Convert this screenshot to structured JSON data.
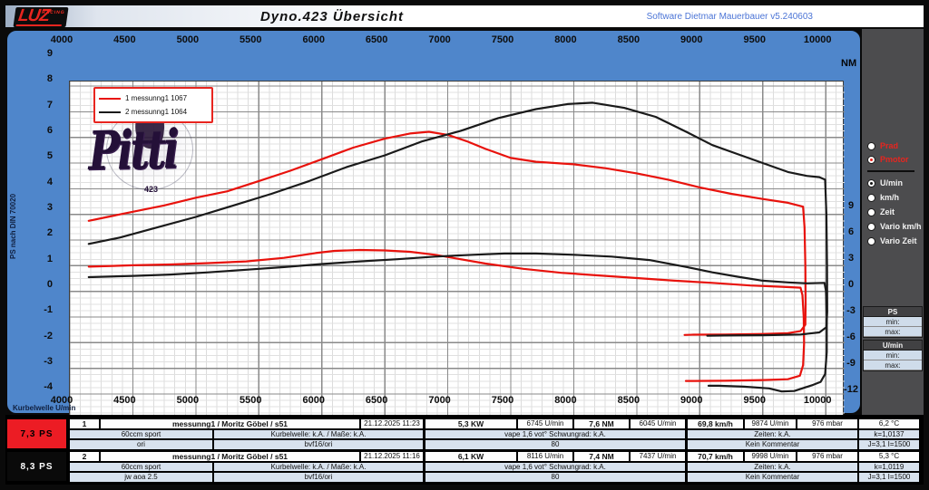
{
  "window": {
    "title": "Dyno.423  Übersicht",
    "software_version": "Software Dietmar Mauerbauer v5.240603",
    "logo_main": "LUZ",
    "logo_sub": "RACING"
  },
  "colors": {
    "curve_red": "#e8120c",
    "curve_black": "#1a1a1a",
    "panel_blue": "#4f86cb",
    "panel_gray": "#4c4c4e",
    "row_tint": "#d8e2ee",
    "ps_cell_red": "#ec1c24",
    "ps_cell_black": "#0a0a0a",
    "software_text": "#4b74d6"
  },
  "chart": {
    "left_axis_label": "PS nach DIN 70020",
    "bottom_axis_label": "Kurbelwelle U/min",
    "right_axis_label": "NM",
    "x_ticks": [
      4000,
      4500,
      5000,
      5500,
      6000,
      6500,
      7000,
      7500,
      8000,
      8500,
      9000,
      9500,
      10000
    ],
    "left_ticks": [
      9,
      8,
      7,
      6,
      5,
      4,
      3,
      2,
      1,
      0,
      -1,
      -2,
      -3,
      -4
    ],
    "right_ticks": [
      9,
      6,
      3,
      0,
      -3,
      -6,
      -9,
      -12
    ],
    "legend": [
      {
        "label": "1  messunng1 1067",
        "color": "#e8120c"
      },
      {
        "label": "2  messunng1 1064",
        "color": "#1a1a1a"
      }
    ],
    "watermark": {
      "text": "Pitti",
      "sub": "423"
    }
  },
  "chart_data": {
    "type": "line",
    "title": "Dyno.423 Übersicht",
    "xlabel": "Kurbelwelle U/min",
    "ylabel_left": "PS nach DIN 70020",
    "ylabel_right": "NM",
    "x_range": [
      4000,
      10150
    ],
    "y_left_range_ps": [
      -4,
      9.2
    ],
    "y_right_ticks_nm": [
      9,
      6,
      3,
      0,
      -3,
      -6,
      -9,
      -12
    ],
    "grid": true,
    "legend_position": "top-left",
    "series": [
      {
        "name": "1 messunng1 1067 (PS)",
        "axis": "PS",
        "color": "#e8120c",
        "points": [
          [
            4150,
            3.75
          ],
          [
            4300,
            3.9
          ],
          [
            4500,
            4.1
          ],
          [
            4750,
            4.35
          ],
          [
            5000,
            4.65
          ],
          [
            5250,
            4.9
          ],
          [
            5500,
            5.3
          ],
          [
            5750,
            5.7
          ],
          [
            6000,
            6.15
          ],
          [
            6250,
            6.6
          ],
          [
            6500,
            6.95
          ],
          [
            6700,
            7.15
          ],
          [
            6850,
            7.22
          ],
          [
            7000,
            7.1
          ],
          [
            7150,
            6.85
          ],
          [
            7300,
            6.55
          ],
          [
            7500,
            6.2
          ],
          [
            7700,
            6.05
          ],
          [
            8000,
            5.95
          ],
          [
            8250,
            5.8
          ],
          [
            8500,
            5.6
          ],
          [
            8750,
            5.35
          ],
          [
            9000,
            5.05
          ],
          [
            9250,
            4.8
          ],
          [
            9500,
            4.6
          ],
          [
            9700,
            4.45
          ],
          [
            9820,
            4.3
          ],
          [
            9832,
            3.5
          ],
          [
            9838,
            2.0
          ],
          [
            9840,
            0.5
          ],
          [
            9838,
            -0.3
          ],
          [
            9800,
            -0.55
          ],
          [
            9700,
            -0.63
          ],
          [
            9500,
            -0.66
          ],
          [
            9200,
            -0.68
          ],
          [
            8950,
            -0.69
          ],
          [
            8880,
            -0.7
          ]
        ]
      },
      {
        "name": "1 messunng1 1067 (NM)",
        "axis": "NM",
        "color": "#e8120c",
        "points": [
          [
            4150,
            5.75
          ],
          [
            4500,
            5.9
          ],
          [
            4800,
            6.0
          ],
          [
            5100,
            6.15
          ],
          [
            5400,
            6.35
          ],
          [
            5700,
            6.75
          ],
          [
            5950,
            7.3
          ],
          [
            6100,
            7.55
          ],
          [
            6300,
            7.65
          ],
          [
            6500,
            7.6
          ],
          [
            6700,
            7.45
          ],
          [
            6900,
            7.1
          ],
          [
            7100,
            6.6
          ],
          [
            7300,
            6.1
          ],
          [
            7600,
            5.5
          ],
          [
            7900,
            5.05
          ],
          [
            8200,
            4.75
          ],
          [
            8500,
            4.45
          ],
          [
            8800,
            4.15
          ],
          [
            9100,
            3.9
          ],
          [
            9400,
            3.6
          ],
          [
            9650,
            3.45
          ],
          [
            9800,
            3.35
          ],
          [
            9815,
            2.5
          ],
          [
            9825,
            0.0
          ],
          [
            9828,
            -3.0
          ],
          [
            9820,
            -5.5
          ],
          [
            9795,
            -6.7
          ],
          [
            9700,
            -7.1
          ],
          [
            9500,
            -7.2
          ],
          [
            9200,
            -7.28
          ],
          [
            8950,
            -7.3
          ],
          [
            8890,
            -7.3
          ]
        ]
      },
      {
        "name": "2 messunng1 1064 (PS)",
        "axis": "PS",
        "color": "#1a1a1a",
        "points": [
          [
            4150,
            2.85
          ],
          [
            4400,
            3.1
          ],
          [
            4700,
            3.5
          ],
          [
            5000,
            3.9
          ],
          [
            5300,
            4.35
          ],
          [
            5600,
            4.8
          ],
          [
            5900,
            5.3
          ],
          [
            6200,
            5.85
          ],
          [
            6500,
            6.3
          ],
          [
            6800,
            6.85
          ],
          [
            7100,
            7.25
          ],
          [
            7400,
            7.75
          ],
          [
            7700,
            8.1
          ],
          [
            7950,
            8.3
          ],
          [
            8150,
            8.35
          ],
          [
            8400,
            8.15
          ],
          [
            8650,
            7.8
          ],
          [
            8900,
            7.2
          ],
          [
            9100,
            6.7
          ],
          [
            9300,
            6.35
          ],
          [
            9500,
            6.0
          ],
          [
            9700,
            5.65
          ],
          [
            9850,
            5.5
          ],
          [
            9950,
            5.45
          ],
          [
            9995,
            5.35
          ],
          [
            10005,
            4.0
          ],
          [
            10010,
            2.0
          ],
          [
            10012,
            0.2
          ],
          [
            10005,
            -0.4
          ],
          [
            9950,
            -0.6
          ],
          [
            9800,
            -0.68
          ],
          [
            9500,
            -0.71
          ],
          [
            9200,
            -0.72
          ],
          [
            9060,
            -0.73
          ]
        ]
      },
      {
        "name": "2 messunng1 1064 (NM)",
        "axis": "NM",
        "color": "#1a1a1a",
        "points": [
          [
            4150,
            4.55
          ],
          [
            4500,
            4.7
          ],
          [
            4800,
            4.85
          ],
          [
            5100,
            5.1
          ],
          [
            5400,
            5.4
          ],
          [
            5700,
            5.7
          ],
          [
            6000,
            6.05
          ],
          [
            6300,
            6.35
          ],
          [
            6600,
            6.6
          ],
          [
            6900,
            6.9
          ],
          [
            7200,
            7.1
          ],
          [
            7450,
            7.25
          ],
          [
            7700,
            7.25
          ],
          [
            8000,
            7.1
          ],
          [
            8300,
            6.9
          ],
          [
            8600,
            6.5
          ],
          [
            8900,
            5.7
          ],
          [
            9100,
            5.1
          ],
          [
            9300,
            4.6
          ],
          [
            9500,
            4.15
          ],
          [
            9700,
            3.95
          ],
          [
            9850,
            3.85
          ],
          [
            9990,
            3.9
          ],
          [
            10002,
            3.0
          ],
          [
            10008,
            0.0
          ],
          [
            10008,
            -4.0
          ],
          [
            9995,
            -6.5
          ],
          [
            9960,
            -7.4
          ],
          [
            9900,
            -7.75
          ],
          [
            9750,
            -8.45
          ],
          [
            9650,
            -8.5
          ],
          [
            9550,
            -8.15
          ],
          [
            9350,
            -7.95
          ],
          [
            9150,
            -7.85
          ],
          [
            9070,
            -7.85
          ]
        ]
      }
    ]
  },
  "side_panel": {
    "power_radios": [
      {
        "label": "Prad",
        "selected": false
      },
      {
        "label": "Pmotor",
        "selected": true
      }
    ],
    "mode_radios": [
      {
        "label": "U/min",
        "selected": true
      },
      {
        "label": "km/h",
        "selected": false
      },
      {
        "label": "Zeit",
        "selected": false
      },
      {
        "label": "Vario km/h",
        "selected": false
      },
      {
        "label": "Vario Zeit",
        "selected": false
      }
    ],
    "range_boxes": [
      {
        "title": "PS",
        "fields": [
          "min:",
          "max:"
        ]
      },
      {
        "title": "U/min",
        "fields": [
          "min:",
          "max:"
        ]
      }
    ]
  },
  "results_table": {
    "rows": [
      {
        "ps_label": "7,3  PS",
        "num": "1",
        "name": "messunng1 / Moritz Göbel / s51",
        "date": "21.12.2025 11:23",
        "kw": "5,3  KW",
        "rpm_kw": "6745  U/min",
        "nm": "7,6  NM",
        "rpm_nm": "6045  U/min",
        "kmh": "69,8 km/h",
        "rpm_end": "9874  U/min",
        "mbar": "976  mbar",
        "temp": "6,2 °C",
        "team": "60ccm sport",
        "kurbelwelle": "Kurbelwelle: k.A. / Maße: k.A.",
        "vape": "vape 1,6 vot° Schwungrad: k.A.",
        "zeiten": "Zeiten: k.A.",
        "k": "k=1,0137",
        "tune": "ori",
        "carb": "bvf16/ori",
        "gear": "80",
        "comment": "Kein Kommentar",
        "j": "J=3,1 I=1500"
      },
      {
        "ps_label": "8,3  PS",
        "num": "2",
        "name": "messunng1 / Moritz Göbel / s51",
        "date": "21.12.2025 11:16",
        "kw": "6,1  KW",
        "rpm_kw": "8116  U/min",
        "nm": "7,4  NM",
        "rpm_nm": "7437  U/min",
        "kmh": "70,7 km/h",
        "rpm_end": "9998  U/min",
        "mbar": "976  mbar",
        "temp": "5,3 °C",
        "team": "60ccm sport",
        "kurbelwelle": "Kurbelwelle: k.A. / Maße: k.A.",
        "vape": "vape 1,6 vot° Schwungrad: k.A.",
        "zeiten": "Zeiten: k.A.",
        "k": "k=1,0119",
        "tune": "jw aoa 2.5",
        "carb": "bvf16/ori",
        "gear": "80",
        "comment": "Kein Kommentar",
        "j": "J=3,1 I=1500"
      }
    ]
  }
}
